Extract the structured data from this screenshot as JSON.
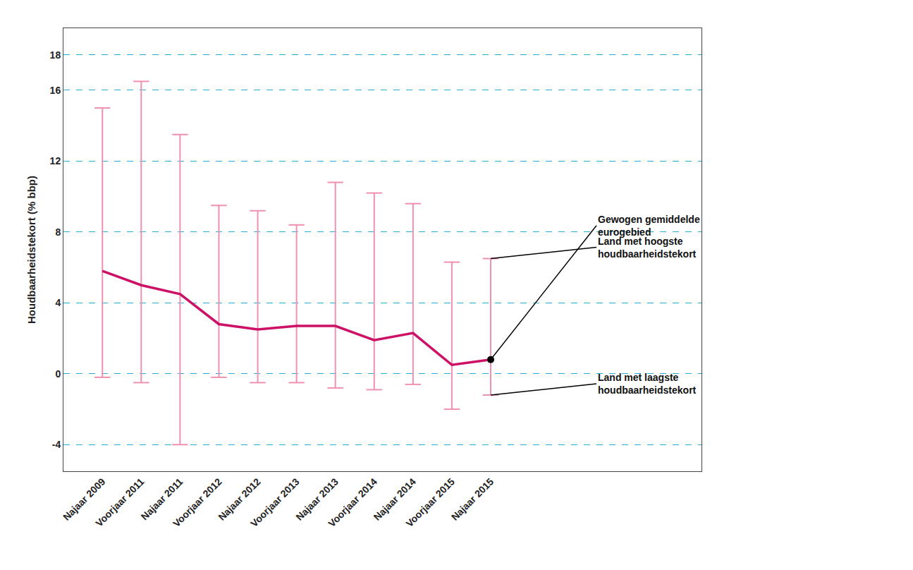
{
  "chart_data": {
    "type": "line",
    "y_label": "Houdbaarheidstekort (% bbp)",
    "categories": [
      "Najaar 2009",
      "Voorjaar 2011",
      "Najaar 2011",
      "Voorjaar 2012",
      "Najaar 2012",
      "Voorjaar 2013",
      "Najaar 2013",
      "Voorjaar 2014",
      "Najaar 2014",
      "Voorjaar 2015",
      "Najaar 2015"
    ],
    "values": [
      5.8,
      5.0,
      4.5,
      2.8,
      2.5,
      2.7,
      2.7,
      1.9,
      2.3,
      0.5,
      0.8
    ],
    "error_high": [
      15.0,
      16.5,
      13.5,
      9.5,
      9.2,
      8.4,
      10.8,
      10.2,
      9.6,
      6.3,
      6.5
    ],
    "error_low": [
      -0.2,
      -0.5,
      -4.0,
      -0.2,
      -0.5,
      -0.5,
      -0.8,
      -0.9,
      -0.6,
      -2.0,
      -1.2
    ],
    "color": "#CC1166",
    "error_color": "#F090B0",
    "dot_color": "#000000",
    "grid_color": "#29ABD4",
    "grid": true,
    "ylim": [
      -5.5,
      19.5
    ],
    "yticks": [
      -4,
      0,
      4,
      8,
      12,
      16,
      18
    ],
    "annotations": [
      "Gewogen gemiddelde\neurogebied",
      "Land met hoogste\nhoudbaarheidstekort",
      "Land met laagste\nhoudbaarheidstekort"
    ]
  }
}
